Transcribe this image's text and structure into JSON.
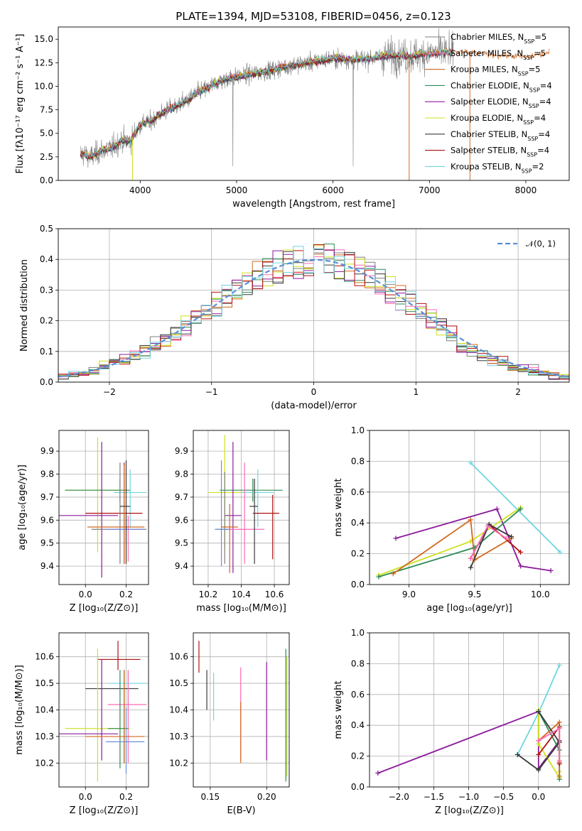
{
  "figure": {
    "title": "PLATE=1394, MJD=53108, FIBERID=0456, z=0.123"
  },
  "colors": [
    "#7f7f7f",
    "#ff69b4",
    "#d2691e",
    "#2e8b57",
    "#8b1a9b",
    "#cde11a",
    "#3a3a3a",
    "#b01010",
    "#70d6e0",
    "#6b8fd6"
  ],
  "chart_data": [
    {
      "id": "spectrum",
      "type": "line",
      "xlabel": "wavelength [Angstrom, rest frame]",
      "ylabel": "Flux [fλ10⁻¹⁷ erg cm⁻² s⁻¹ A⁻¹]",
      "xlim": [
        3150,
        8450
      ],
      "ylim": [
        0,
        16.3
      ],
      "xticks": [
        4000,
        5000,
        6000,
        7000,
        8000
      ],
      "yticks": [
        0.0,
        2.5,
        5.0,
        7.5,
        10.0,
        12.5,
        15.0
      ],
      "grid": false,
      "legend_position": "top-right",
      "model_profile": {
        "x": [
          3400,
          3500,
          3600,
          3700,
          3800,
          3900,
          4000,
          4100,
          4200,
          4300,
          4400,
          4500,
          4600,
          4700,
          4800,
          4900,
          5000,
          5200,
          5400,
          5600,
          5800,
          6000,
          6200,
          6400,
          6600,
          6800,
          7000,
          7200,
          7400,
          7600,
          7800,
          8000,
          8200
        ],
        "y": [
          2.8,
          2.5,
          3.2,
          3.4,
          4.2,
          4.2,
          6.0,
          6.2,
          7.0,
          7.6,
          8.0,
          8.6,
          9.4,
          9.8,
          10.4,
          10.8,
          11.0,
          11.4,
          11.8,
          12.3,
          12.6,
          13.0,
          12.8,
          13.0,
          13.3,
          13.2,
          13.5,
          13.6,
          13.5,
          13.3,
          13.2,
          13.0,
          13.4
        ]
      },
      "series": [
        {
          "name": "Chabrier MILES, N_SSP=5",
          "sub": "SSP",
          "label_main": "Chabrier MILES, N",
          "label_end": "=5"
        },
        {
          "name": "Salpeter MILES, N_SSP=5",
          "sub": "SSP",
          "label_main": "Salpeter MILES, N",
          "label_end": "=5"
        },
        {
          "name": "Kroupa MILES, N_SSP=5",
          "sub": "SSP",
          "label_main": "Kroupa MILES, N",
          "label_end": "=5"
        },
        {
          "name": "Chabrier ELODIE, N_SSP=4",
          "sub": "SSP",
          "label_main": "Chabrier ELODIE, N",
          "label_end": "=4"
        },
        {
          "name": "Salpeter ELODIE, N_SSP=4",
          "sub": "SSP",
          "label_main": "Salpeter ELODIE, N",
          "label_end": "=4"
        },
        {
          "name": "Kroupa ELODIE, N_SSP=4",
          "sub": "SSP",
          "label_main": "Kroupa ELODIE, N",
          "label_end": "=4"
        },
        {
          "name": "Chabrier STELIB, N_SSP=4",
          "sub": "SSP",
          "label_main": "Chabrier STELIB, N",
          "label_end": "=4"
        },
        {
          "name": "Salpeter STELIB, N_SSP=4",
          "sub": "SSP",
          "label_main": "Salpeter STELIB, N",
          "label_end": "=4"
        },
        {
          "name": "Kroupa STELIB, N_SSP=2",
          "sub": "SSP",
          "label_main": "Kroupa STELIB, N",
          "label_end": "=2"
        }
      ],
      "data_series_color": "#808080"
    },
    {
      "id": "residuals",
      "type": "histogram",
      "xlabel": "(data-model)/error",
      "ylabel": "Normed distribution",
      "xlim": [
        -2.5,
        2.5
      ],
      "ylim": [
        0,
        0.5
      ],
      "xticks": [
        -2,
        -1,
        0,
        1,
        2
      ],
      "yticks": [
        0.0,
        0.1,
        0.2,
        0.3,
        0.4,
        0.5
      ],
      "grid": true,
      "legend_position": "top-right",
      "gaussian_label": "𝒩(0, 1)",
      "bin_width": 0.1
    },
    {
      "id": "age_vs_Z",
      "type": "errorbar",
      "xlabel": "Z [log₁₀(Z/Z⊙)]",
      "ylabel": "age  [log₁₀(age/yr)]",
      "xlim": [
        -0.13,
        0.31
      ],
      "ylim": [
        9.32,
        9.99
      ],
      "xticks": [
        0.0,
        0.2
      ],
      "yticks": [
        9.4,
        9.5,
        9.6,
        9.7,
        9.8,
        9.9
      ],
      "grid": true,
      "points": [
        {
          "x": 0.06,
          "y": 9.73,
          "xerr": [
            0.16,
            0.15
          ],
          "yerr": [
            0.27,
            0.23
          ],
          "c": 5
        },
        {
          "x": 0.17,
          "y": 9.73,
          "xerr": [
            0.27,
            0.05
          ],
          "yerr": [
            0.05,
            0.05
          ],
          "c": 3
        },
        {
          "x": 0.22,
          "y": 9.72,
          "xerr": [
            0.08,
            0.08
          ],
          "yerr": [
            0.15,
            0.1
          ],
          "c": 8
        },
        {
          "x": 0.08,
          "y": 9.62,
          "xerr": [
            0.21,
            0.08
          ],
          "yerr": [
            0.27,
            0.32
          ],
          "c": 4
        },
        {
          "x": 0.19,
          "y": 9.63,
          "xerr": [
            0.19,
            0.09
          ],
          "yerr": [
            0.22,
            0.22
          ],
          "c": 7
        },
        {
          "x": 0.17,
          "y": 9.56,
          "xerr": [
            0.14,
            0.13
          ],
          "yerr": [
            0.15,
            0.29
          ],
          "c": 0
        },
        {
          "x": 0.21,
          "y": 9.56,
          "xerr": [
            0.11,
            0.08
          ],
          "yerr": [
            0.14,
            0.06
          ],
          "c": 1
        },
        {
          "x": 0.19,
          "y": 9.57,
          "xerr": [
            0.18,
            0.1
          ],
          "yerr": [
            0.16,
            0.27
          ],
          "c": 2
        },
        {
          "x": 0.2,
          "y": 9.56,
          "xerr": [
            0.1,
            0.09
          ],
          "yerr": [
            0.06,
            0.06
          ],
          "c": 9
        },
        {
          "x": 0.2,
          "y": 9.66,
          "xerr": [
            0.03,
            0.02
          ],
          "yerr": [
            0.25,
            0.2
          ],
          "c": 6
        }
      ]
    },
    {
      "id": "age_vs_mass",
      "type": "errorbar",
      "xlabel": "mass [log₁₀(M/M⊙)]",
      "ylabel": "",
      "xlim": [
        10.11,
        10.69
      ],
      "ylim": [
        9.32,
        9.99
      ],
      "xticks": [
        10.2,
        10.4,
        10.6
      ],
      "yticks": [
        9.4,
        9.5,
        9.6,
        9.7,
        9.8,
        9.9
      ],
      "grid": true,
      "points": [
        {
          "x": 10.3,
          "y": 9.72,
          "xerr": [
            0.1,
            0.1
          ],
          "yerr": [
            0.25,
            0.25
          ],
          "c": 5
        },
        {
          "x": 10.47,
          "y": 9.73,
          "xerr": [
            0.2,
            0.18
          ],
          "yerr": [
            0.05,
            0.05
          ],
          "c": 3
        },
        {
          "x": 10.5,
          "y": 9.72,
          "xerr": [
            0.1,
            0.1
          ],
          "yerr": [
            0.15,
            0.1
          ],
          "c": 8
        },
        {
          "x": 10.35,
          "y": 9.62,
          "xerr": [
            0.05,
            0.05
          ],
          "yerr": [
            0.25,
            0.32
          ],
          "c": 4
        },
        {
          "x": 10.59,
          "y": 9.63,
          "xerr": [
            0.12,
            0.04
          ],
          "yerr": [
            0.2,
            0.08
          ],
          "c": 7
        },
        {
          "x": 10.3,
          "y": 9.56,
          "xerr": [
            0.05,
            0.05
          ],
          "yerr": [
            0.15,
            0.25
          ],
          "c": 0
        },
        {
          "x": 10.42,
          "y": 9.56,
          "xerr": [
            0.12,
            0.12
          ],
          "yerr": [
            0.15,
            0.29
          ],
          "c": 1
        },
        {
          "x": 10.33,
          "y": 9.57,
          "xerr": [
            0.05,
            0.05
          ],
          "yerr": [
            0.2,
            0.1
          ],
          "c": 2
        },
        {
          "x": 10.28,
          "y": 9.56,
          "xerr": [
            0.04,
            0.05
          ],
          "yerr": [
            0.16,
            0.3
          ],
          "c": 9
        },
        {
          "x": 10.48,
          "y": 9.66,
          "xerr": [
            0.03,
            0.02
          ],
          "yerr": [
            0.25,
            0.12
          ],
          "c": 6
        }
      ]
    },
    {
      "id": "weight_vs_age",
      "type": "line",
      "xlabel": "age  [log₁₀(age/yr)]",
      "ylabel": "mass weight",
      "xlim": [
        8.7,
        10.22
      ],
      "ylim": [
        0,
        1
      ],
      "xticks": [
        9.0,
        9.5,
        10.0
      ],
      "yticks": [
        0.0,
        0.2,
        0.4,
        0.6,
        0.8,
        1.0
      ],
      "grid": true,
      "series": [
        {
          "c": 8,
          "x": [
            9.47,
            10.15
          ],
          "y": [
            0.79,
            0.21
          ]
        },
        {
          "c": 4,
          "x": [
            8.9,
            9.67,
            9.85,
            10.08
          ],
          "y": [
            0.3,
            0.49,
            0.12,
            0.09
          ]
        },
        {
          "c": 5,
          "x": [
            8.77,
            9.47,
            9.85
          ],
          "y": [
            0.06,
            0.28,
            0.5
          ]
        },
        {
          "c": 3,
          "x": [
            8.77,
            9.5,
            9.85
          ],
          "y": [
            0.05,
            0.24,
            0.49
          ]
        },
        {
          "c": 2,
          "x": [
            8.88,
            9.47,
            9.5,
            9.78
          ],
          "y": [
            0.07,
            0.42,
            0.16,
            0.3
          ]
        },
        {
          "c": 7,
          "x": [
            9.47,
            9.61,
            9.85
          ],
          "y": [
            0.17,
            0.39,
            0.21
          ]
        },
        {
          "c": 6,
          "x": [
            9.47,
            9.61,
            9.78
          ],
          "y": [
            0.11,
            0.39,
            0.31
          ]
        },
        {
          "c": 1,
          "x": [
            9.47,
            9.6,
            9.74
          ],
          "y": [
            0.17,
            0.38,
            0.3
          ]
        }
      ]
    },
    {
      "id": "mass_vs_Z",
      "type": "errorbar",
      "xlabel": "Z [log₁₀(Z/Z⊙)]",
      "ylabel": "mass [log₁₀(M/M⊙)]",
      "xlim": [
        -0.13,
        0.31
      ],
      "ylim": [
        10.11,
        10.69
      ],
      "xticks": [
        0.0,
        0.2
      ],
      "yticks": [
        10.2,
        10.3,
        10.4,
        10.5,
        10.6
      ],
      "grid": true,
      "points": [
        {
          "x": 0.16,
          "y": 10.59,
          "xerr": [
            0.1,
            0.11
          ],
          "yerr": [
            0.04,
            0.07
          ],
          "c": 7
        },
        {
          "x": 0.21,
          "y": 10.5,
          "xerr": [
            0.09,
            0.09
          ],
          "yerr": [
            0.12,
            0.05
          ],
          "c": 8
        },
        {
          "x": 0.19,
          "y": 10.48,
          "xerr": [
            0.19,
            0.07
          ],
          "yerr": [
            0.28,
            0.07
          ],
          "c": 6
        },
        {
          "x": 0.21,
          "y": 10.42,
          "xerr": [
            0.1,
            0.09
          ],
          "yerr": [
            0.22,
            0.13
          ],
          "c": 1
        },
        {
          "x": 0.06,
          "y": 10.33,
          "xerr": [
            0.16,
            0.16
          ],
          "yerr": [
            0.2,
            0.3
          ],
          "c": 5
        },
        {
          "x": 0.17,
          "y": 10.33,
          "xerr": [
            0.06,
            0.04
          ],
          "yerr": [
            0.15,
            0.22
          ],
          "c": 3
        },
        {
          "x": 0.08,
          "y": 10.31,
          "xerr": [
            0.21,
            0.08
          ],
          "yerr": [
            0.1,
            0.28
          ],
          "c": 4
        },
        {
          "x": 0.19,
          "y": 10.3,
          "xerr": [
            0.19,
            0.1
          ],
          "yerr": [
            0.1,
            0.25
          ],
          "c": 2
        },
        {
          "x": 0.2,
          "y": 10.28,
          "xerr": [
            0.1,
            0.09
          ],
          "yerr": [
            0.12,
            0.13
          ],
          "c": 9
        }
      ]
    },
    {
      "id": "mass_vs_ebv",
      "type": "errorbar",
      "xlabel": "E(B-V)",
      "ylabel": "",
      "xlim": [
        0.135,
        0.22
      ],
      "ylim": [
        10.11,
        10.69
      ],
      "xticks": [
        0.15,
        0.2
      ],
      "yticks": [
        10.2,
        10.3,
        10.4,
        10.5,
        10.6
      ],
      "grid": true,
      "points": [
        {
          "x": 0.14,
          "y": 10.6,
          "xerr": [
            0,
            0
          ],
          "yerr": [
            0.06,
            0.06
          ],
          "c": 7
        },
        {
          "x": 0.147,
          "y": 10.47,
          "xerr": [
            0,
            0
          ],
          "yerr": [
            0.07,
            0.08
          ],
          "c": 6
        },
        {
          "x": 0.153,
          "y": 10.45,
          "xerr": [
            0,
            0
          ],
          "yerr": [
            0.09,
            0.09
          ],
          "c": 8
        },
        {
          "x": 0.177,
          "y": 10.38,
          "xerr": [
            0,
            0
          ],
          "yerr": [
            0.17,
            0.18
          ],
          "c": 1
        },
        {
          "x": 0.177,
          "y": 10.33,
          "xerr": [
            0,
            0
          ],
          "yerr": [
            0.13,
            0.1
          ],
          "c": 2
        },
        {
          "x": 0.2,
          "y": 10.4,
          "xerr": [
            0,
            0
          ],
          "yerr": [
            0.19,
            0.18
          ],
          "c": 4
        },
        {
          "x": 0.217,
          "y": 10.38,
          "xerr": [
            0,
            0
          ],
          "yerr": [
            0.25,
            0.25
          ],
          "c": 3
        },
        {
          "x": 0.218,
          "y": 10.37,
          "xerr": [
            0,
            0
          ],
          "yerr": [
            0.22,
            0.23
          ],
          "c": 5
        }
      ]
    },
    {
      "id": "weight_vs_Z",
      "type": "line",
      "xlabel": "Z [log₁₀(Z/Z⊙)]",
      "ylabel": "mass weight",
      "xlim": [
        -2.42,
        0.44
      ],
      "ylim": [
        0,
        1
      ],
      "xticks": [
        -2.0,
        -1.5,
        -1.0,
        -0.5,
        0.0
      ],
      "yticks": [
        0.0,
        0.2,
        0.4,
        0.6,
        0.8,
        1.0
      ],
      "grid": true,
      "series": [
        {
          "c": 8,
          "x": [
            -0.3,
            0.0,
            0.3
          ],
          "y": [
            0.21,
            0.48,
            0.79
          ]
        },
        {
          "c": 4,
          "x": [
            -2.3,
            0.0,
            0.0,
            0.3
          ],
          "y": [
            0.09,
            0.49,
            0.12,
            0.3
          ]
        },
        {
          "c": 5,
          "x": [
            0.0,
            0.0,
            0.3,
            0.3
          ],
          "y": [
            0.5,
            0.28,
            0.06,
            0.1
          ]
        },
        {
          "c": 3,
          "x": [
            0.0,
            0.3,
            0.3
          ],
          "y": [
            0.49,
            0.24,
            0.05
          ]
        },
        {
          "c": 2,
          "x": [
            0.0,
            0.3,
            0.3,
            0.3
          ],
          "y": [
            0.3,
            0.42,
            0.16,
            0.07
          ]
        },
        {
          "c": 7,
          "x": [
            0.0,
            0.3,
            0.3
          ],
          "y": [
            0.21,
            0.39,
            0.15
          ]
        },
        {
          "c": 6,
          "x": [
            -0.3,
            0.0,
            0.3,
            0.0
          ],
          "y": [
            0.21,
            0.11,
            0.29,
            0.49
          ]
        },
        {
          "c": 1,
          "x": [
            0.0,
            0.3,
            0.3
          ],
          "y": [
            0.3,
            0.38,
            0.17
          ]
        }
      ]
    }
  ]
}
